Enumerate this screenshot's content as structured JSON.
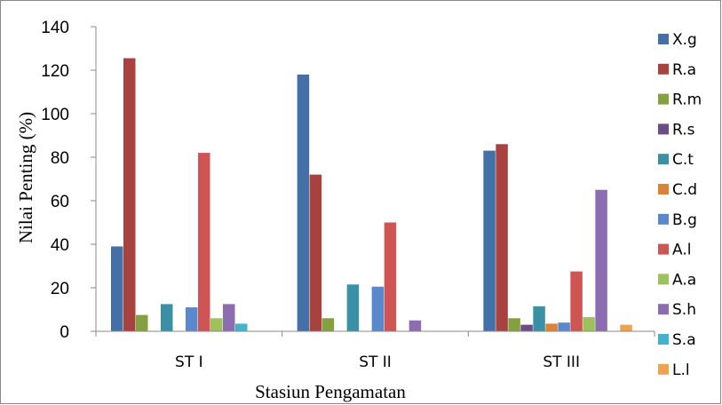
{
  "chart_data": {
    "type": "bar",
    "title": "",
    "xlabel": "Stasiun Pengamatan",
    "ylabel": "Nilai Penting (%)",
    "ylim": [
      0,
      140
    ],
    "yticks": [
      "0",
      "20",
      "40",
      "60",
      "80",
      "100",
      "120",
      "140"
    ],
    "grid": false,
    "legend_position": "right",
    "categories": [
      "ST I",
      "ST II",
      "ST III"
    ],
    "series": [
      {
        "name": "X.g",
        "color": "#4470A8",
        "values": [
          39,
          118,
          83
        ]
      },
      {
        "name": "R.a",
        "color": "#A8423F",
        "values": [
          125.5,
          72,
          86
        ]
      },
      {
        "name": "R.m",
        "color": "#83A13F",
        "values": [
          7.5,
          6,
          6
        ]
      },
      {
        "name": "R.s",
        "color": "#6B4D8A",
        "values": [
          0,
          0,
          3
        ]
      },
      {
        "name": "C.t",
        "color": "#3A91A5",
        "values": [
          12.5,
          21.5,
          11.5
        ]
      },
      {
        "name": "C.d",
        "color": "#D98438",
        "values": [
          0,
          0,
          3.5
        ]
      },
      {
        "name": "B.g",
        "color": "#5A88CC",
        "values": [
          11,
          20.5,
          4
        ]
      },
      {
        "name": "A.l",
        "color": "#CE5553",
        "values": [
          82,
          50,
          27.5
        ]
      },
      {
        "name": "A.a",
        "color": "#9EC25B",
        "values": [
          6,
          0,
          6.5
        ]
      },
      {
        "name": "S.h",
        "color": "#8B6DB0",
        "values": [
          12.5,
          5,
          65
        ]
      },
      {
        "name": "S.a",
        "color": "#43B3CC",
        "values": [
          3.5,
          0,
          0
        ]
      },
      {
        "name": "L.l",
        "color": "#F2A24C",
        "values": [
          0,
          0,
          3
        ]
      }
    ]
  }
}
